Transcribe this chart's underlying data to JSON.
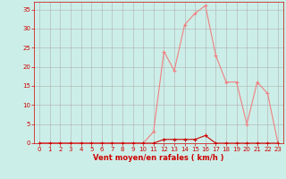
{
  "x": [
    0,
    1,
    2,
    3,
    4,
    5,
    6,
    7,
    8,
    9,
    10,
    11,
    12,
    13,
    14,
    15,
    16,
    17,
    18,
    19,
    20,
    21,
    22,
    23
  ],
  "y_rafales": [
    0,
    0,
    0,
    0,
    0,
    0,
    0,
    0,
    0,
    0,
    0,
    3,
    24,
    19,
    31,
    34,
    36,
    23,
    16,
    16,
    5,
    16,
    13,
    0
  ],
  "y_moyen": [
    0,
    0,
    0,
    0,
    0,
    0,
    0,
    0,
    0,
    0,
    0,
    0,
    1,
    1,
    1,
    1,
    2,
    0,
    0,
    0,
    0,
    0,
    0,
    0
  ],
  "line_color_rafales": "#f08080",
  "line_color_moyen": "#cc0000",
  "bg_color": "#cceee8",
  "grid_color": "#b0b0b0",
  "xlabel": "Vent moyen/en rafales ( km/h )",
  "xlabel_color": "#cc0000",
  "tick_color": "#cc0000",
  "spine_color": "#cc0000",
  "ylim": [
    0,
    37
  ],
  "yticks": [
    0,
    5,
    10,
    15,
    20,
    25,
    30,
    35
  ],
  "xlim": [
    -0.5,
    23.5
  ],
  "tick_fontsize": 5.0,
  "xlabel_fontsize": 6.0
}
